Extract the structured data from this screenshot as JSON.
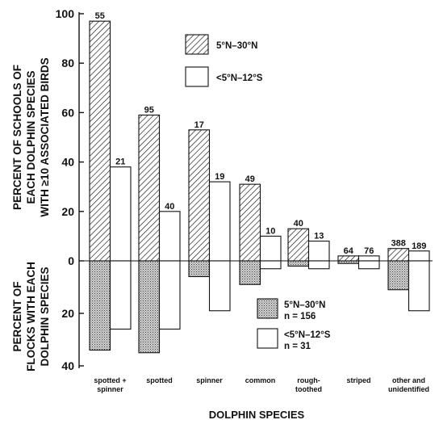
{
  "chart_data": {
    "type": "bar",
    "xlabel": "DOLPHIN SPECIES",
    "ylabel_top": [
      "PERCENT OF SCHOOLS OF",
      "EACH DOLPHIN SPECIES",
      "WITH ≥10 ASSOCIATED BIRDS"
    ],
    "ylabel_bottom": [
      "PERCENT OF",
      "FLOCKS WITH EACH",
      "DOLPHIN SPECIES"
    ],
    "ylim_top": [
      0,
      100
    ],
    "ylim_bottom": [
      0,
      40
    ],
    "yticks_top": [
      "100",
      "80",
      "60",
      "40",
      "20",
      "0"
    ],
    "yticks_bottom": [
      "20",
      "40"
    ],
    "categories": [
      [
        "spotted +",
        "spinner"
      ],
      [
        "spotted"
      ],
      [
        "spinner"
      ],
      [
        "common"
      ],
      [
        "rough-",
        "toothed"
      ],
      [
        "striped"
      ],
      [
        "other and",
        "unidentified"
      ]
    ],
    "top_series": [
      {
        "name": "5°N–30°N",
        "values": [
          97,
          59,
          53,
          31,
          13,
          2,
          5
        ],
        "labels": [
          "55",
          "95",
          "17",
          "49",
          "40",
          "64",
          "388"
        ]
      },
      {
        "name": "<5°N–12°S",
        "values": [
          38,
          20,
          32,
          10,
          8,
          2,
          4
        ],
        "labels": [
          "21",
          "40",
          "19",
          "10",
          "13",
          "76",
          "189"
        ]
      }
    ],
    "top_legend": [
      "5°N–30°N",
      "<5°N–12°S"
    ],
    "bottom_series": [
      {
        "name": "5°N–30°N",
        "n": "n = 156",
        "values": [
          34,
          35,
          6,
          9,
          2,
          1,
          11
        ]
      },
      {
        "name": "<5°N–12°S",
        "n": "n = 31",
        "values": [
          26,
          26,
          19,
          3,
          3,
          3,
          19
        ]
      }
    ]
  },
  "colors": {
    "ink": "#111111",
    "background": "#ffffff"
  }
}
